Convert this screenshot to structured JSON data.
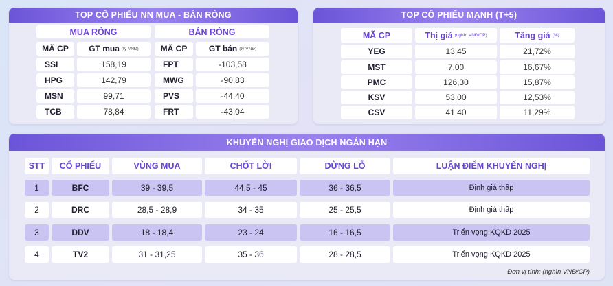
{
  "nn_panel": {
    "title": "TOP CỔ PHIẾU NN MUA - BÁN RÒNG",
    "buy_title": "MUA RÒNG",
    "sell_title": "BÁN RÒNG",
    "col_code": "MÃ CP",
    "col_buy": "GT mua",
    "col_buy_unit": "(tỷ VNĐ)",
    "col_sell": "GT bán",
    "col_sell_unit": "(tỷ VNĐ)",
    "buy_rows": [
      {
        "code": "SSI",
        "value": "158,19"
      },
      {
        "code": "HPG",
        "value": "142,79"
      },
      {
        "code": "MSN",
        "value": "99,71"
      },
      {
        "code": "TCB",
        "value": "78,84"
      }
    ],
    "sell_rows": [
      {
        "code": "FPT",
        "value": "-103,58"
      },
      {
        "code": "MWG",
        "value": "-90,83"
      },
      {
        "code": "PVS",
        "value": "-44,40"
      },
      {
        "code": "FRT",
        "value": "-43,04"
      }
    ]
  },
  "strong_panel": {
    "title": "TOP CỔ PHIẾU MẠNH (T+5)",
    "col_code": "MÃ CP",
    "col_price": "Thị giá",
    "col_price_unit": "(nghìn VNĐ/CP)",
    "col_change": "Tăng giá",
    "col_change_unit": "(%)",
    "rows": [
      {
        "code": "YEG",
        "price": "13,45",
        "change": "21,72%"
      },
      {
        "code": "MST",
        "price": "7,00",
        "change": "16,67%"
      },
      {
        "code": "PMC",
        "price": "126,30",
        "change": "15,87%"
      },
      {
        "code": "KSV",
        "price": "53,00",
        "change": "12,53%"
      },
      {
        "code": "CSV",
        "price": "41,40",
        "change": "11,29%"
      }
    ]
  },
  "rec_panel": {
    "title": "KHUYẾN NGHỊ GIAO DỊCH NGẮN HẠN",
    "headers": [
      "STT",
      "CỔ PHIẾU",
      "VÙNG MUA",
      "CHỐT LỜI",
      "DỪNG LỖ",
      "LUẬN ĐIỂM KHUYẾN NGHỊ"
    ],
    "rows": [
      {
        "stt": "1",
        "code": "BFC",
        "buy": "39 - 39,5",
        "take": "44,5 - 45",
        "stop": "36 - 36,5",
        "thesis": "Định giá thấp"
      },
      {
        "stt": "2",
        "code": "DRC",
        "buy": "28,5 - 28,9",
        "take": "34 - 35",
        "stop": "25 - 25,5",
        "thesis": "Định giá thấp"
      },
      {
        "stt": "3",
        "code": "DDV",
        "buy": "18 - 18,4",
        "take": "23 - 24",
        "stop": "16 - 16,5",
        "thesis": "Triển vọng KQKD 2025"
      },
      {
        "stt": "4",
        "code": "TV2",
        "buy": "31 - 31,25",
        "take": "35 - 36",
        "stop": "28 - 28,5",
        "thesis": "Triển vọng KQKD 2025"
      }
    ],
    "unit_note": "Đơn vị tính: (nghìn VNĐ/CP)"
  },
  "colors": {
    "header_gradient": "#6b54d8",
    "accent_text": "#6a45d6",
    "highlight_row": "#c9c4f2",
    "panel_bg": "#e9eaf6"
  }
}
